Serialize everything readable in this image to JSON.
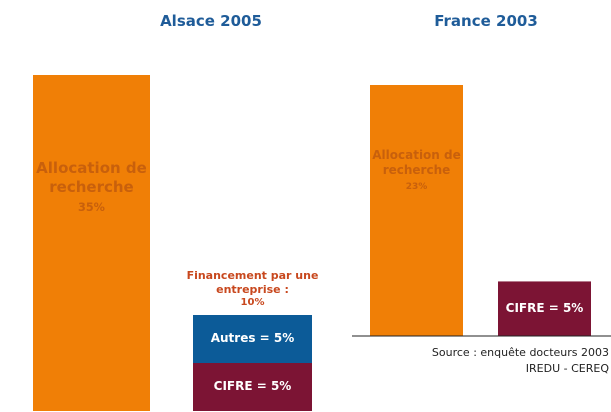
{
  "chart_data": [
    {
      "type": "stacked_bar",
      "title": "Alsace 2005",
      "ylim": [
        0,
        35
      ],
      "series": [
        {
          "name": "Allocation de recherche",
          "color": "#f07f06",
          "values": [
            35,
            null
          ],
          "value_labels": [
            "35%",
            null
          ]
        },
        {
          "color": "#7c1434",
          "values": [
            null,
            5
          ],
          "value_labels": [
            null,
            "CIFRE = 5%"
          ]
        },
        {
          "color": "#0c5b98",
          "values": [
            null,
            5
          ],
          "value_labels": [
            null,
            "Autres = 5%"
          ]
        }
      ],
      "annotation": {
        "text": "Financement par une entreprise :",
        "value": 10,
        "value_label": "10%"
      }
    },
    {
      "type": "stacked_bar",
      "title": "France 2003",
      "ylim": [
        0,
        23
      ],
      "series": [
        {
          "name": "Allocation de recherche",
          "color": "#f07f06",
          "values": [
            23,
            null
          ],
          "value_labels": [
            "23%",
            null
          ]
        },
        {
          "color": "#7c1434",
          "values": [
            null,
            5
          ],
          "value_labels": [
            null,
            "CIFRE = 5%"
          ]
        }
      ],
      "source": [
        "Source : enquête docteurs 2003",
        "IREDU - CEREQ"
      ]
    }
  ]
}
